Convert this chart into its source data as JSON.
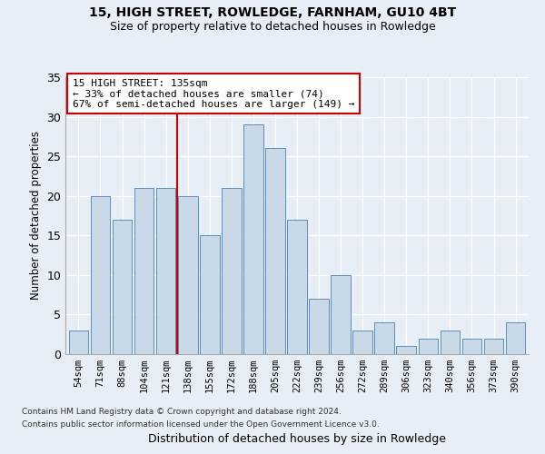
{
  "title1": "15, HIGH STREET, ROWLEDGE, FARNHAM, GU10 4BT",
  "title2": "Size of property relative to detached houses in Rowledge",
  "xlabel": "Distribution of detached houses by size in Rowledge",
  "ylabel": "Number of detached properties",
  "categories": [
    "54sqm",
    "71sqm",
    "88sqm",
    "104sqm",
    "121sqm",
    "138sqm",
    "155sqm",
    "172sqm",
    "188sqm",
    "205sqm",
    "222sqm",
    "239sqm",
    "256sqm",
    "272sqm",
    "289sqm",
    "306sqm",
    "323sqm",
    "340sqm",
    "356sqm",
    "373sqm",
    "390sqm"
  ],
  "values": [
    3,
    20,
    17,
    21,
    21,
    20,
    15,
    21,
    29,
    26,
    17,
    7,
    10,
    3,
    4,
    1,
    2,
    3,
    2,
    2,
    4
  ],
  "bar_color": "#c9d9e8",
  "bar_edge_color": "#5a8fc0",
  "annotation_text": "15 HIGH STREET: 135sqm\n← 33% of detached houses are smaller (74)\n67% of semi-detached houses are larger (149) →",
  "annotation_box_color": "#ffffff",
  "annotation_box_edge": "#cc0000",
  "vline_color": "#cc0000",
  "footer1": "Contains HM Land Registry data © Crown copyright and database right 2024.",
  "footer2": "Contains public sector information licensed under the Open Government Licence v3.0.",
  "ylim": [
    0,
    35
  ],
  "yticks": [
    0,
    5,
    10,
    15,
    20,
    25,
    30,
    35
  ],
  "background_color": "#e8eef5",
  "plot_background": "#e8eef5"
}
